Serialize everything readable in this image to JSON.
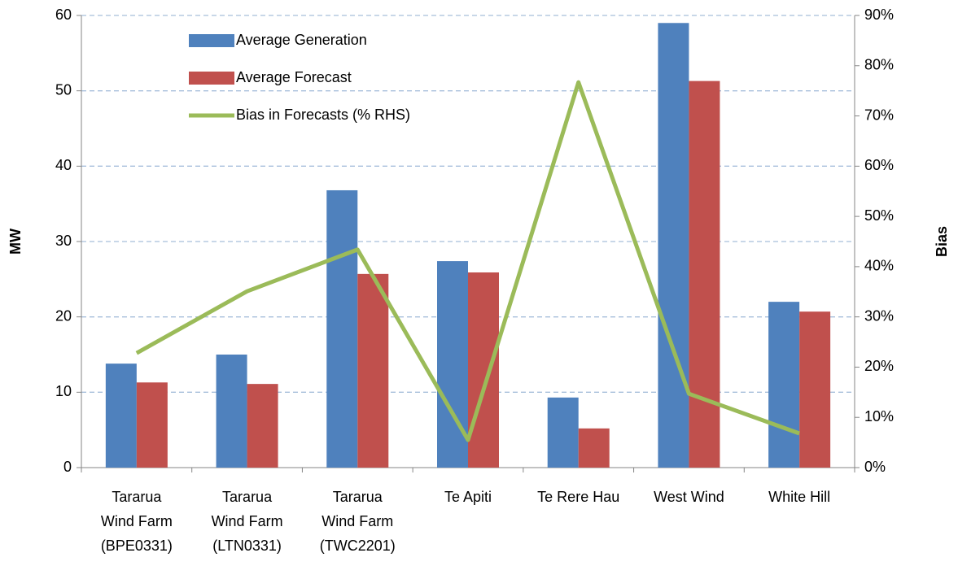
{
  "chart_data": {
    "type": "bar_line",
    "categories": [
      [
        "Tararua",
        "Wind Farm",
        "(BPE0331)"
      ],
      [
        "Tararua",
        "Wind Farm",
        "(LTN0331)"
      ],
      [
        "Tararua",
        "Wind Farm",
        "(TWC2201)"
      ],
      [
        "Te Apiti"
      ],
      [
        "Te Rere Hau"
      ],
      [
        "West Wind"
      ],
      [
        "White Hill"
      ]
    ],
    "series": [
      {
        "name": "Average Generation",
        "type": "bar",
        "color": "#4f81bd",
        "values": [
          13.8,
          15.0,
          36.8,
          27.4,
          9.3,
          59.0,
          22.0
        ]
      },
      {
        "name": "Average Forecast",
        "type": "bar",
        "color": "#c0504d",
        "values": [
          11.3,
          11.1,
          25.7,
          25.9,
          5.2,
          51.3,
          20.7
        ]
      },
      {
        "name": "Bias in Forecasts (% RHS)",
        "type": "line",
        "axis": "y2",
        "color": "#9bbb59",
        "values": [
          22.8,
          35.1,
          43.4,
          5.5,
          76.7,
          14.7,
          6.8
        ]
      }
    ],
    "ylabel": "MW",
    "y2label": "Bias",
    "ylim": [
      0,
      60
    ],
    "yticks": [
      0,
      10,
      20,
      30,
      40,
      50,
      60
    ],
    "y2lim": [
      0,
      90
    ],
    "y2ticks": [
      {
        "value": 0,
        "label": "0%"
      },
      {
        "value": 10,
        "label": "10%"
      },
      {
        "value": 20,
        "label": "20%"
      },
      {
        "value": 30,
        "label": "30%"
      },
      {
        "value": 40,
        "label": "40%"
      },
      {
        "value": 50,
        "label": "50%"
      },
      {
        "value": 60,
        "label": "60%"
      },
      {
        "value": 70,
        "label": "70%"
      },
      {
        "value": 80,
        "label": "80%"
      },
      {
        "value": 90,
        "label": "90%"
      }
    ],
    "grid": true,
    "legend": "upper left"
  }
}
